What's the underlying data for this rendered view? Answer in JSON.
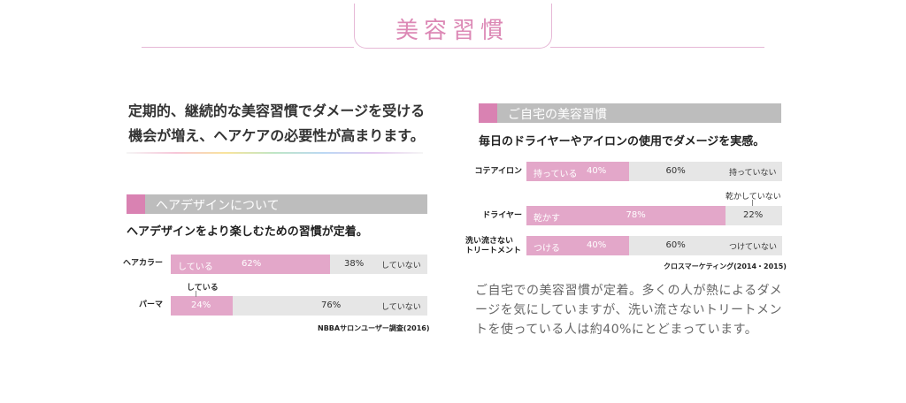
{
  "header": {
    "title": "美容習慣"
  },
  "left": {
    "lead_line1": "定期的、継続的な美容習慣でダメージを受ける",
    "lead_line2": "機会が増え、ヘアケアの必要性が高まります。",
    "section_title": "ヘアデザインについて",
    "subtitle": "ヘアデザインをより楽しむための習慣が定着。",
    "source": "NBBAサロンユーザー調査(2016)"
  },
  "right": {
    "section_title": "ご自宅の美容習慣",
    "subtitle": "毎日のドライヤーやアイロンの使用でダメージを実感。",
    "source": "クロスマーケティング(2014・2015)",
    "body": "ご自宅での美容習慣が定着。多くの人が熱によるダメージを気にしていますが、洗い流さないトリートメントを使っている人は約40%にとどまっています。"
  },
  "chart_data": [
    {
      "type": "bar",
      "orientation": "horizontal-stacked",
      "title": "ヘアデザインについて",
      "subtitle": "ヘアデザインをより楽しむための習慣が定着。",
      "categories": [
        "ヘアカラー",
        "パーマ"
      ],
      "series": [
        {
          "name": "している",
          "values": [
            62,
            24
          ],
          "labels": [
            "62%",
            "24%"
          ]
        },
        {
          "name": "していない",
          "values": [
            38,
            76
          ],
          "labels": [
            "38%",
            "76%"
          ]
        }
      ],
      "source": "NBBAサロンユーザー調査(2016)",
      "colors": {
        "yes": "#e3a7c9",
        "no": "#e6e6e6"
      }
    },
    {
      "type": "bar",
      "orientation": "horizontal-stacked",
      "title": "ご自宅の美容習慣",
      "subtitle": "毎日のドライヤーやアイロンの使用でダメージを実感。",
      "categories": [
        "コテアイロン",
        "ドライヤー",
        "洗い流さないトリートメント"
      ],
      "category_display": [
        "コテアイロン",
        "ドライヤー",
        "洗い流さない\nトリートメント"
      ],
      "rows": [
        {
          "yes_label": "持っている",
          "no_label": "持っていない",
          "yes": 40,
          "no": 60,
          "yes_text": "40%",
          "no_text": "60%"
        },
        {
          "yes_label": "乾かす",
          "no_label": "乾かしていない",
          "yes": 78,
          "no": 22,
          "yes_text": "78%",
          "no_text": "22%"
        },
        {
          "yes_label": "つける",
          "no_label": "つけていない",
          "yes": 40,
          "no": 60,
          "yes_text": "40%",
          "no_text": "60%"
        }
      ],
      "source": "クロスマーケティング(2014・2015)",
      "colors": {
        "yes": "#e3a7c9",
        "no": "#e6e6e6"
      }
    }
  ]
}
